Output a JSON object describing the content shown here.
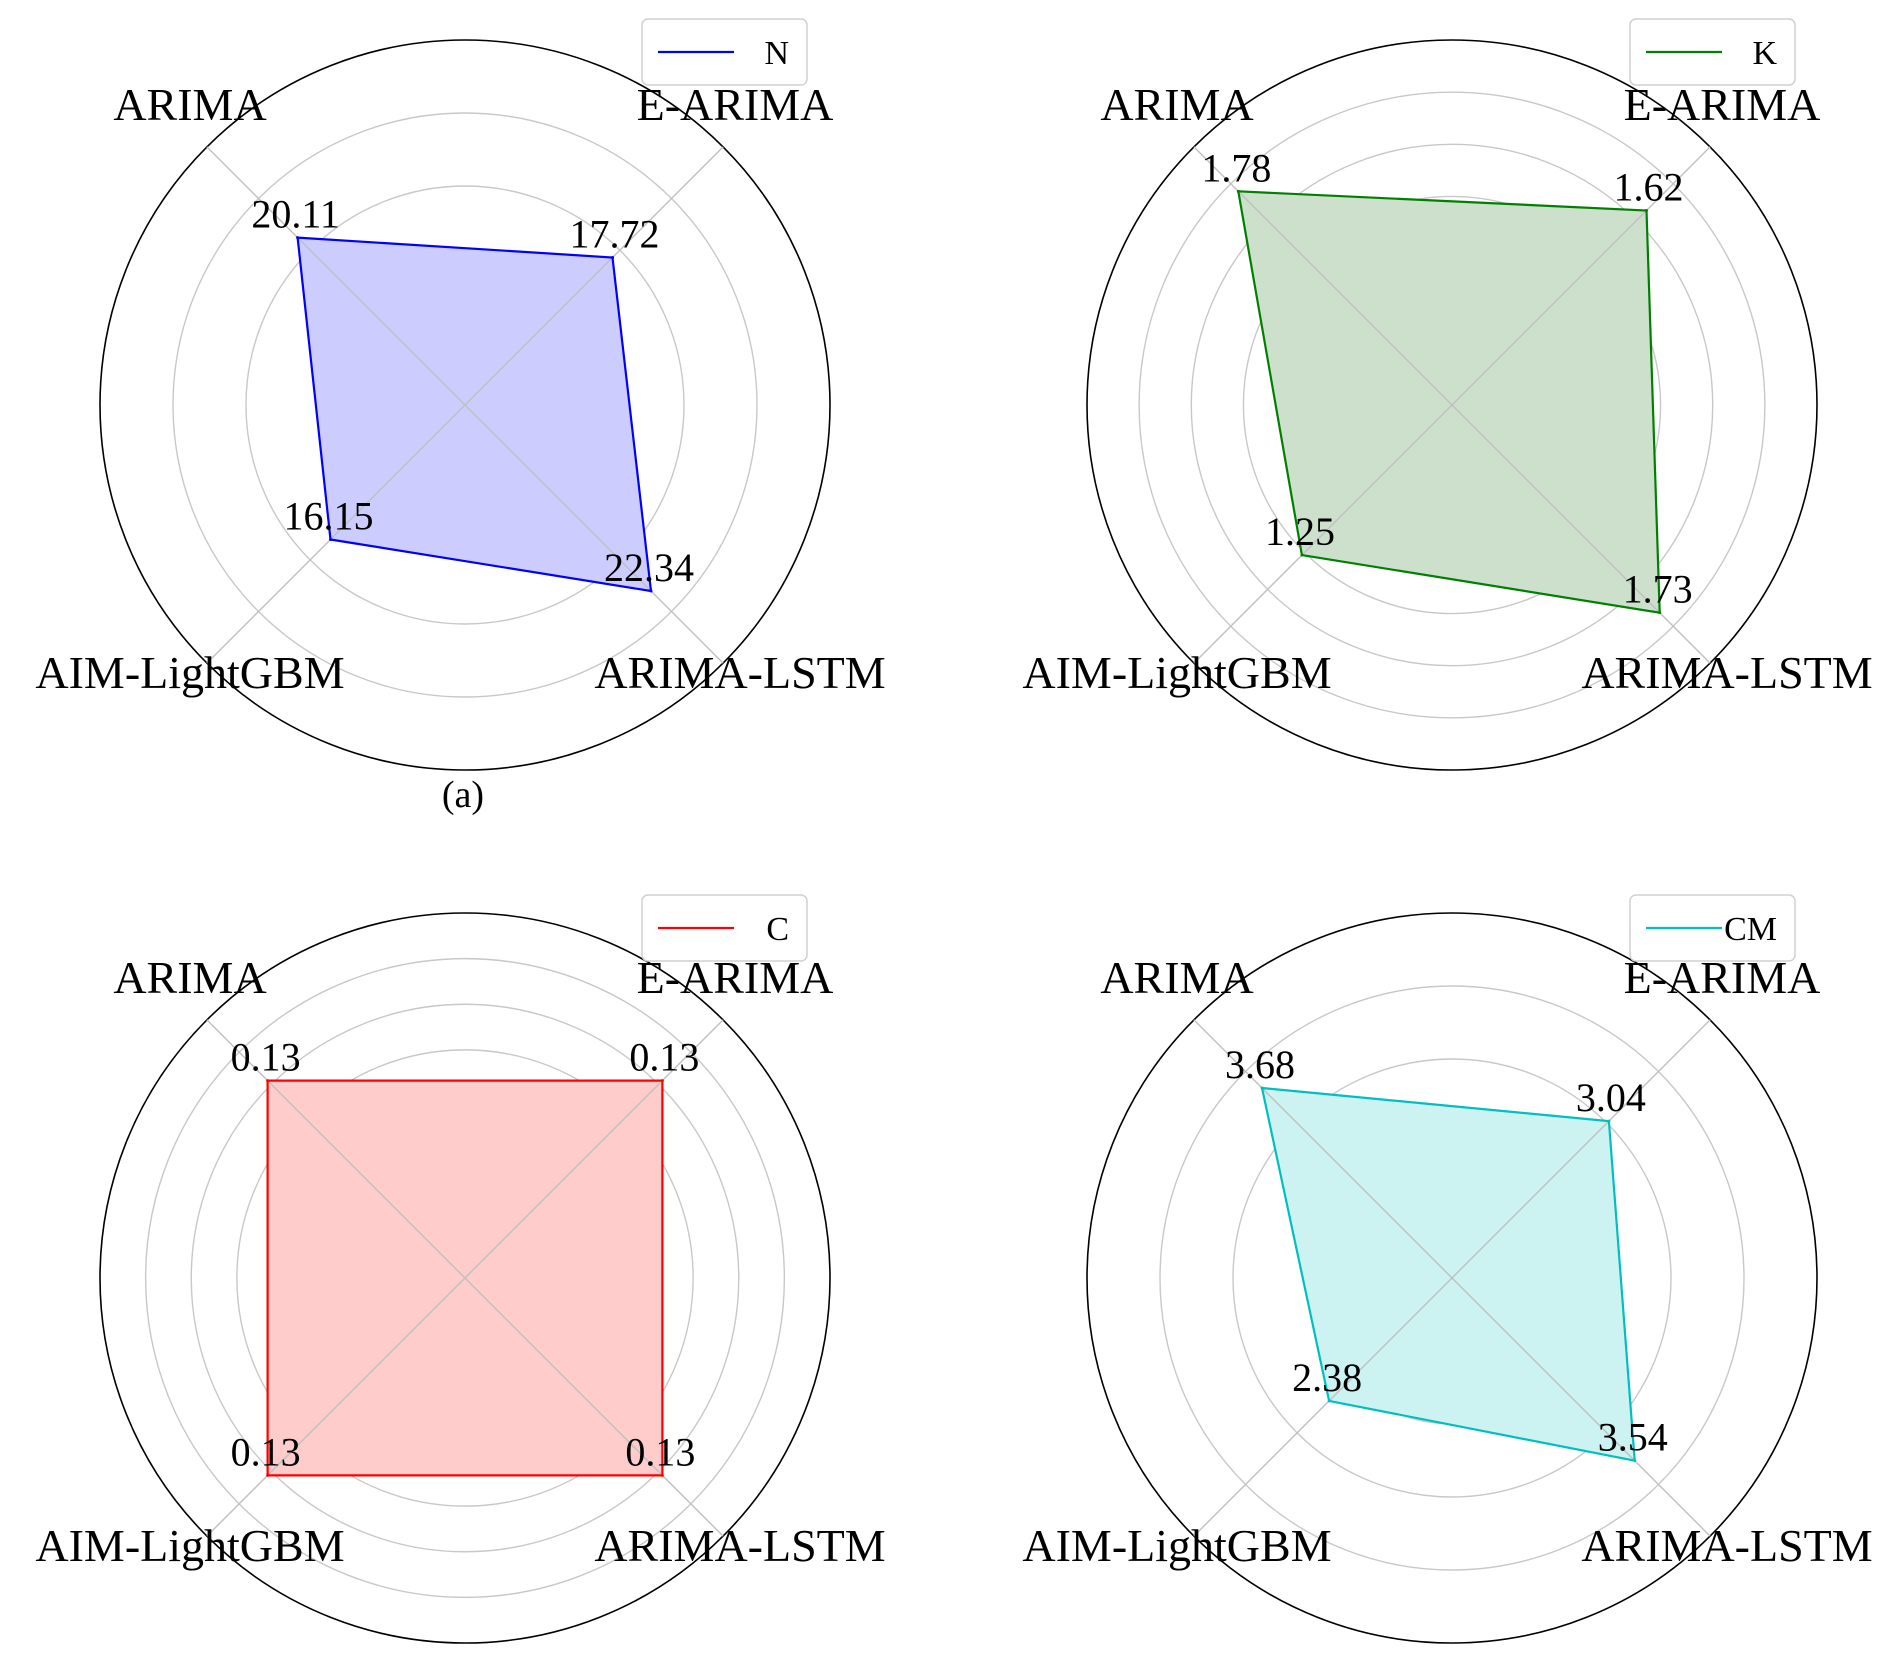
{
  "chart_data": [
    {
      "type": "radar",
      "categories": [
        "ARIMA",
        "E-ARIMA",
        "ARIMA-LSTM",
        "AIM-LightGBM"
      ],
      "series": [
        {
          "name": "N",
          "values": [
            20.11,
            17.72,
            22.34,
            16.15
          ]
        }
      ],
      "value_labels": [
        "20.11",
        "17.72",
        "22.34",
        "16.15"
      ],
      "color": "#0000ff",
      "fill": "#ccccff",
      "rmax": 31,
      "grid_rings": 4,
      "legend_position": "top-right",
      "caption": "(a)"
    },
    {
      "type": "radar",
      "categories": [
        "ARIMA",
        "E-ARIMA",
        "ARIMA-LSTM",
        "AIM-LightGBM"
      ],
      "series": [
        {
          "name": "K",
          "values": [
            1.78,
            1.62,
            1.73,
            1.25
          ]
        }
      ],
      "value_labels": [
        "1.78",
        "1.62",
        "1.73",
        "1.25"
      ],
      "color": "#008000",
      "fill": "#cce0cc",
      "rmax": 2.15,
      "grid_rings": 6,
      "legend_position": "top-right",
      "caption": ""
    },
    {
      "type": "radar",
      "categories": [
        "ARIMA",
        "E-ARIMA",
        "ARIMA-LSTM",
        "AIM-LightGBM"
      ],
      "series": [
        {
          "name": "C",
          "values": [
            0.13,
            0.13,
            0.13,
            0.13
          ]
        }
      ],
      "value_labels": [
        "0.13",
        "0.13",
        "0.13",
        "0.13"
      ],
      "color": "#ff0000",
      "fill": "#ffcccc",
      "rmax": 0.17,
      "grid_rings": 7,
      "legend_position": "top-right",
      "caption": ""
    },
    {
      "type": "radar",
      "categories": [
        "ARIMA",
        "E-ARIMA",
        "ARIMA-LSTM",
        "AIM-LightGBM"
      ],
      "series": [
        {
          "name": "CM",
          "values": [
            3.68,
            3.04,
            3.54,
            2.38
          ]
        }
      ],
      "value_labels": [
        "3.68",
        "3.04",
        "3.54",
        "2.38"
      ],
      "color": "#00bfbf",
      "fill": "#ccf2f2",
      "rmax": 5.0,
      "grid_rings": 4,
      "legend_position": "top-right",
      "caption": ""
    }
  ]
}
